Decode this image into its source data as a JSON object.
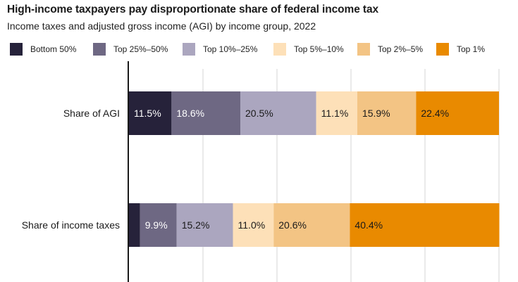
{
  "title": "High-income taxpayers pay disproportionate share of federal income tax",
  "subtitle": "Income taxes and adjusted gross income (AGI) by income group, 2022",
  "colors": [
    "#26223a",
    "#6e6883",
    "#aba6bf",
    "#fde0b8",
    "#f3c484",
    "#e98a00"
  ],
  "chart_data": {
    "type": "stacked-bar-horizontal",
    "title": "High-income taxpayers pay disproportionate share of federal income tax",
    "subtitle": "Income taxes and adjusted gross income (AGI) by income group, 2022",
    "categories": [
      "Share of AGI",
      "Share of income taxes"
    ],
    "series": [
      {
        "name": "Bottom 50%",
        "values": [
          11.5,
          3.0
        ]
      },
      {
        "name": "Top 25%–50%",
        "values": [
          18.6,
          9.9
        ]
      },
      {
        "name": "Top 10%–25%",
        "values": [
          20.5,
          15.2
        ]
      },
      {
        "name": "Top 5%–10%",
        "values": [
          11.1,
          11.0
        ]
      },
      {
        "name": "Top 2%–5%",
        "values": [
          15.9,
          20.6
        ]
      },
      {
        "name": "Top 1%",
        "values": [
          22.4,
          40.4
        ]
      }
    ],
    "labels": [
      [
        "11.5%",
        "18.6%",
        "20.5%",
        "11.1%",
        "15.9%",
        "22.4%"
      ],
      [
        "",
        "9.9%",
        "15.2%",
        "11.0%",
        "20.6%",
        "40.4%"
      ]
    ],
    "xlim": [
      0,
      100
    ],
    "grid": true,
    "legend": "top"
  }
}
